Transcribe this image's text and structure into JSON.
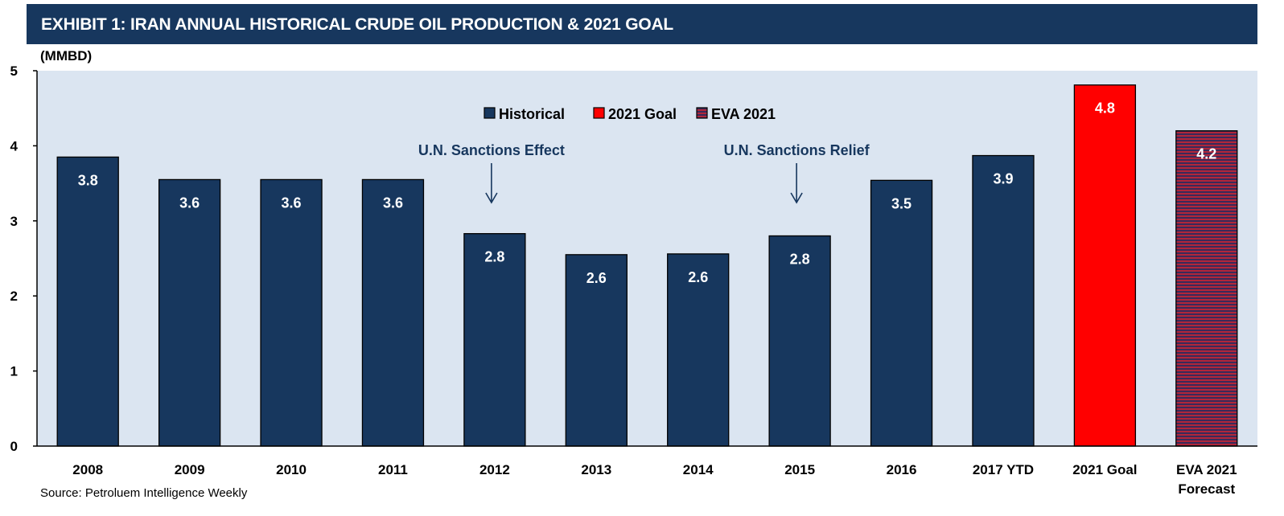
{
  "header": {
    "title": "EXHIBIT 1: IRAN ANNUAL HISTORICAL CRUDE OIL PRODUCTION & 2021 GOAL"
  },
  "units_label": "(MMBD)",
  "source": "Source: Petroluem Intelligence Weekly",
  "colors": {
    "historical": "#17375e",
    "goal": "#ff0000",
    "eva": "#b0263a",
    "plot_bg": "#dbe5f1"
  },
  "chart_data": {
    "type": "bar",
    "title": "",
    "ylabel": "(MMBD)",
    "xlabel": "",
    "ylim": [
      0,
      5
    ],
    "yticks": [
      0,
      1,
      2,
      3,
      4,
      5
    ],
    "grid": false,
    "legend_position": "top-center",
    "categories": [
      "2008",
      "2009",
      "2010",
      "2011",
      "2012",
      "2013",
      "2014",
      "2015",
      "2016",
      "2017 YTD",
      "2021 Goal",
      "EVA 2021 Forecast"
    ],
    "values": [
      3.85,
      3.55,
      3.55,
      3.55,
      2.83,
      2.55,
      2.56,
      2.8,
      3.54,
      3.87,
      4.81,
      4.2
    ],
    "data_labels": [
      "3.8",
      "3.6",
      "3.6",
      "3.6",
      "2.8",
      "2.6",
      "2.6",
      "2.8",
      "3.5",
      "3.9",
      "4.8",
      "4.2"
    ],
    "series_of_bar": [
      "Historical",
      "Historical",
      "Historical",
      "Historical",
      "Historical",
      "Historical",
      "Historical",
      "Historical",
      "Historical",
      "Historical",
      "2021 Goal",
      "EVA 2021"
    ],
    "legend": [
      "Historical",
      "2021 Goal",
      "EVA 2021"
    ],
    "annotations": [
      {
        "text": "U.N. Sanctions Effect",
        "category": "2012"
      },
      {
        "text": "U.N. Sanctions Relief",
        "category": "2015"
      }
    ]
  }
}
